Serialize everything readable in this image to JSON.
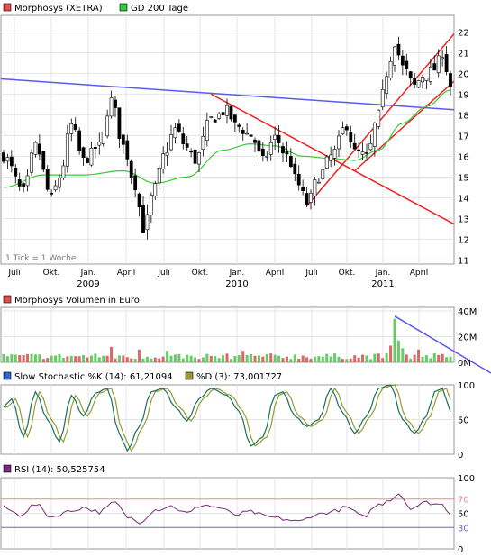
{
  "chart_data": [
    {
      "type": "candlestick",
      "legend": [
        {
          "label": "Morphosys (XETRA)",
          "color": "#e05050"
        },
        {
          "label": "GD 200 Tage",
          "color": "#33cc33"
        }
      ],
      "note": "1 Tick = 1 Woche",
      "y_ticks": [
        11,
        12,
        13,
        14,
        15,
        16,
        17,
        18,
        19,
        20,
        21,
        22
      ],
      "ylim": [
        10.8,
        22.8
      ],
      "x_ticks": [
        {
          "label": "Juli",
          "year": ""
        },
        {
          "label": "Okt.",
          "year": ""
        },
        {
          "label": "Jan.",
          "year": "2009"
        },
        {
          "label": "April",
          "year": ""
        },
        {
          "label": "Juli",
          "year": ""
        },
        {
          "label": "Okt.",
          "year": ""
        },
        {
          "label": "Jan.",
          "year": "2010"
        },
        {
          "label": "April",
          "year": ""
        },
        {
          "label": "Juli",
          "year": ""
        },
        {
          "label": "Okt.",
          "year": ""
        },
        {
          "label": "Jan.",
          "year": "2011"
        },
        {
          "label": "April",
          "year": ""
        }
      ],
      "close_anchors": [
        [
          0,
          16.0
        ],
        [
          5,
          14.3
        ],
        [
          8,
          16.5
        ],
        [
          12,
          14.0
        ],
        [
          14,
          15.0
        ],
        [
          17,
          17.5
        ],
        [
          20,
          15.8
        ],
        [
          24,
          16.5
        ],
        [
          27,
          18.7
        ],
        [
          30,
          16.5
        ],
        [
          33,
          14.6
        ],
        [
          35,
          12.5
        ],
        [
          38,
          14.5
        ],
        [
          40,
          16.0
        ],
        [
          43,
          17.3
        ],
        [
          46,
          16.4
        ],
        [
          48,
          15.8
        ],
        [
          52,
          17.8
        ],
        [
          56,
          18.2
        ],
        [
          58,
          17.5
        ],
        [
          62,
          17.0
        ],
        [
          65,
          15.8
        ],
        [
          68,
          16.9
        ],
        [
          71,
          16.0
        ],
        [
          74,
          14.6
        ],
        [
          76,
          13.7
        ],
        [
          79,
          15.0
        ],
        [
          82,
          16.0
        ],
        [
          86,
          17.5
        ],
        [
          88,
          16.2
        ],
        [
          91,
          16.0
        ],
        [
          94,
          18.0
        ],
        [
          96,
          20.0
        ],
        [
          98,
          21.5
        ],
        [
          100,
          20.3
        ],
        [
          103,
          19.4
        ],
        [
          105,
          19.9
        ],
        [
          108,
          20.2
        ],
        [
          110,
          21.0
        ],
        [
          112,
          19.4
        ]
      ],
      "ma200_anchors": [
        [
          0,
          14.5
        ],
        [
          10,
          15.1
        ],
        [
          20,
          15.1
        ],
        [
          30,
          15.3
        ],
        [
          38,
          14.7
        ],
        [
          46,
          15.0
        ],
        [
          55,
          16.3
        ],
        [
          62,
          16.6
        ],
        [
          68,
          16.5
        ],
        [
          75,
          16.0
        ],
        [
          82,
          15.9
        ],
        [
          88,
          15.8
        ],
        [
          94,
          16.3
        ],
        [
          100,
          17.6
        ],
        [
          106,
          18.4
        ],
        [
          112,
          19.2
        ]
      ],
      "trendlines": [
        {
          "color": "#5a5aee",
          "from": [
            -2,
            19.75
          ],
          "to": [
            120,
            18.15
          ]
        },
        {
          "color": "#ee2222",
          "from": [
            52,
            19.0
          ],
          "to": [
            120,
            12.0
          ]
        },
        {
          "color": "#ee2222",
          "from": [
            76,
            13.6
          ],
          "to": [
            120,
            23.5
          ]
        },
        {
          "color": "#ee2222",
          "from": [
            88,
            15.3
          ],
          "to": [
            122,
            21.2
          ]
        }
      ]
    },
    {
      "type": "bar",
      "legend": [
        {
          "label": "Morphosys Volumen in Euro",
          "color": "#e05050"
        }
      ],
      "y_ticks": [
        "40M",
        "20M",
        "0M"
      ],
      "ylim": [
        0,
        40
      ],
      "unit": "M",
      "base_volume": 5,
      "spikes": [
        [
          27,
          12
        ],
        [
          34,
          10
        ],
        [
          41,
          9
        ],
        [
          60,
          9
        ],
        [
          97,
          13
        ],
        [
          98,
          34
        ],
        [
          99,
          17
        ],
        [
          100,
          11
        ],
        [
          104,
          10
        ]
      ],
      "trendline": {
        "color": "#5a5aee",
        "from": [
          98,
          36
        ],
        "to": [
          120,
          -5
        ]
      }
    },
    {
      "type": "line",
      "legend": [
        {
          "label": "Slow Stochastic %K (14): 61,21094",
          "color": "#3366cc"
        },
        {
          "label": "%D (3): 73,001727",
          "color": "#999933"
        }
      ],
      "y_ticks": [
        0,
        50,
        100
      ],
      "ylim": [
        0,
        100
      ],
      "k_anchors": [
        [
          0,
          68
        ],
        [
          2,
          80
        ],
        [
          5,
          25
        ],
        [
          8,
          90
        ],
        [
          11,
          50
        ],
        [
          14,
          18
        ],
        [
          17,
          85
        ],
        [
          20,
          55
        ],
        [
          23,
          88
        ],
        [
          26,
          95
        ],
        [
          29,
          30
        ],
        [
          31,
          5
        ],
        [
          34,
          40
        ],
        [
          37,
          90
        ],
        [
          40,
          95
        ],
        [
          43,
          68
        ],
        [
          46,
          48
        ],
        [
          49,
          80
        ],
        [
          52,
          95
        ],
        [
          56,
          85
        ],
        [
          59,
          62
        ],
        [
          62,
          12
        ],
        [
          65,
          25
        ],
        [
          68,
          85
        ],
        [
          70,
          90
        ],
        [
          73,
          55
        ],
        [
          76,
          40
        ],
        [
          79,
          50
        ],
        [
          82,
          95
        ],
        [
          85,
          60
        ],
        [
          88,
          30
        ],
        [
          91,
          55
        ],
        [
          94,
          95
        ],
        [
          97,
          100
        ],
        [
          100,
          50
        ],
        [
          103,
          30
        ],
        [
          106,
          55
        ],
        [
          108,
          90
        ],
        [
          110,
          95
        ],
        [
          112,
          61
        ]
      ],
      "d_lag": 1
    },
    {
      "type": "line",
      "legend": [
        {
          "label": "RSI (14): 50,525754",
          "color": "#7a2a7a"
        }
      ],
      "y_ticks": [
        0,
        30,
        50,
        70,
        100
      ],
      "ylim": [
        0,
        100
      ],
      "levels": [
        {
          "value": 70,
          "color": "#ee8888"
        },
        {
          "value": 30,
          "color": "#6666cc"
        }
      ],
      "rsi_anchors": [
        [
          0,
          58
        ],
        [
          4,
          48
        ],
        [
          8,
          62
        ],
        [
          12,
          45
        ],
        [
          16,
          52
        ],
        [
          20,
          58
        ],
        [
          24,
          52
        ],
        [
          28,
          65
        ],
        [
          31,
          45
        ],
        [
          34,
          38
        ],
        [
          38,
          55
        ],
        [
          42,
          60
        ],
        [
          46,
          50
        ],
        [
          50,
          62
        ],
        [
          54,
          58
        ],
        [
          58,
          48
        ],
        [
          62,
          52
        ],
        [
          66,
          45
        ],
        [
          70,
          42
        ],
        [
          74,
          38
        ],
        [
          78,
          48
        ],
        [
          82,
          52
        ],
        [
          86,
          58
        ],
        [
          90,
          45
        ],
        [
          94,
          62
        ],
        [
          97,
          70
        ],
        [
          99,
          78
        ],
        [
          102,
          58
        ],
        [
          106,
          65
        ],
        [
          110,
          62
        ],
        [
          112,
          50
        ]
      ]
    }
  ]
}
